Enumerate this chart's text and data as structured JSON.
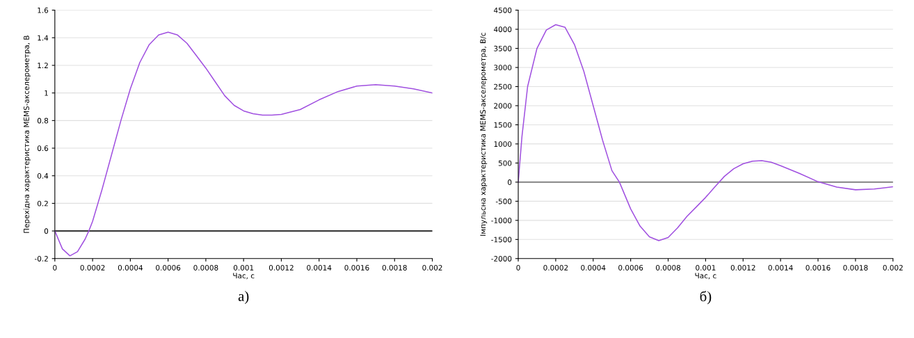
{
  "chart_data": [
    {
      "type": "line",
      "xlabel": "Час, с",
      "ylabel": "Перехідна характеристика MEMS-акселерометра, В",
      "annotations": [
        "а)"
      ],
      "xlim": [
        0,
        0.002
      ],
      "xticks": [
        0,
        0.0002,
        0.0004,
        0.0006,
        0.0008,
        0.001,
        0.0012,
        0.0014,
        0.0016,
        0.0018,
        0.002
      ],
      "ylim": [
        -0.2,
        1.6
      ],
      "yticks": [
        -0.2,
        0,
        0.2,
        0.4,
        0.6,
        0.8,
        1,
        1.2,
        1.4,
        1.6
      ],
      "grid": "y",
      "legend": false,
      "ref_lines": [
        {
          "axis": "y",
          "value": 0,
          "color": "#404040"
        }
      ],
      "series": [
        {
          "color": "#a050e0",
          "x": [
            0,
            4e-05,
            8e-05,
            0.00012,
            0.00016,
            0.00018,
            0.0002,
            0.00025,
            0.0003,
            0.00035,
            0.0004,
            0.00045,
            0.0005,
            0.00055,
            0.0006,
            0.00065,
            0.0007,
            0.00075,
            0.0008,
            0.00085,
            0.0009,
            0.00095,
            0.001,
            0.00105,
            0.0011,
            0.00115,
            0.0012,
            0.0013,
            0.0014,
            0.0015,
            0.0016,
            0.0017,
            0.0018,
            0.0019,
            0.002
          ],
          "values": [
            0,
            -0.13,
            -0.18,
            -0.15,
            -0.06,
            0,
            0.07,
            0.3,
            0.55,
            0.8,
            1.03,
            1.22,
            1.35,
            1.42,
            1.44,
            1.42,
            1.36,
            1.27,
            1.18,
            1.08,
            0.98,
            0.91,
            0.87,
            0.85,
            0.84,
            0.84,
            0.845,
            0.88,
            0.95,
            1.01,
            1.05,
            1.06,
            1.05,
            1.03,
            1.0
          ]
        }
      ]
    },
    {
      "type": "line",
      "xlabel": "Час, с",
      "ylabel": "Імпульсна характеристика MEMS-акселерометра, В/с",
      "annotations": [
        "б)"
      ],
      "xlim": [
        0,
        0.002
      ],
      "xticks": [
        0,
        0.0002,
        0.0004,
        0.0006,
        0.0008,
        0.001,
        0.0012,
        0.0014,
        0.0016,
        0.0018,
        0.002
      ],
      "ylim": [
        -2000,
        4500
      ],
      "yticks": [
        -2000,
        -1500,
        -1000,
        -500,
        0,
        500,
        1000,
        1500,
        2000,
        2500,
        3000,
        3500,
        4000,
        4500
      ],
      "grid": "y",
      "legend": false,
      "ref_lines": [
        {
          "axis": "y",
          "value": 0,
          "color": "#909090"
        }
      ],
      "series": [
        {
          "color": "#a050e0",
          "x": [
            0,
            2e-05,
            5e-05,
            0.0001,
            0.00015,
            0.0002,
            0.00025,
            0.0003,
            0.00035,
            0.0004,
            0.00045,
            0.0005,
            0.00054,
            0.0006,
            0.00065,
            0.0007,
            0.00075,
            0.0008,
            0.00085,
            0.0009,
            0.00095,
            0.001,
            0.00105,
            0.0011,
            0.00115,
            0.0012,
            0.00125,
            0.0013,
            0.00135,
            0.0014,
            0.0015,
            0.0016,
            0.0017,
            0.0018,
            0.0019,
            0.002
          ],
          "values": [
            0,
            1200,
            2500,
            3500,
            3980,
            4120,
            4050,
            3600,
            2900,
            2000,
            1100,
            300,
            0,
            -700,
            -1150,
            -1430,
            -1530,
            -1450,
            -1200,
            -900,
            -650,
            -400,
            -120,
            150,
            350,
            480,
            550,
            560,
            520,
            430,
            230,
            10,
            -130,
            -200,
            -180,
            -120
          ]
        }
      ]
    }
  ]
}
